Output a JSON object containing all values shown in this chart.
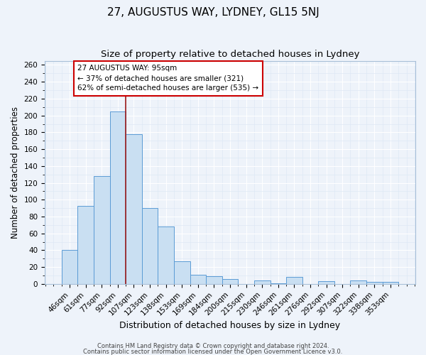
{
  "title": "27, AUGUSTUS WAY, LYDNEY, GL15 5NJ",
  "subtitle": "Size of property relative to detached houses in Lydney",
  "xlabel": "Distribution of detached houses by size in Lydney",
  "ylabel": "Number of detached properties",
  "bar_labels": [
    "46sqm",
    "61sqm",
    "77sqm",
    "92sqm",
    "107sqm",
    "123sqm",
    "138sqm",
    "153sqm",
    "169sqm",
    "184sqm",
    "200sqm",
    "215sqm",
    "230sqm",
    "246sqm",
    "261sqm",
    "276sqm",
    "292sqm",
    "307sqm",
    "322sqm",
    "338sqm",
    "353sqm"
  ],
  "bar_values": [
    40,
    93,
    128,
    205,
    178,
    90,
    68,
    27,
    11,
    9,
    6,
    0,
    4,
    1,
    8,
    0,
    3,
    0,
    4,
    2,
    2
  ],
  "bar_color": "#c9dff2",
  "bar_edge_color": "#5b9bd5",
  "background_color": "#eef3fa",
  "grid_color": "#ffffff",
  "marker_x_label": "92sqm",
  "marker_line_color": "#9b1a1a",
  "annotation_text": "27 AUGUSTUS WAY: 95sqm\n← 37% of detached houses are smaller (321)\n62% of semi-detached houses are larger (535) →",
  "annotation_box_edge_color": "#cc0000",
  "annotation_box_face_color": "#ffffff",
  "ylim": [
    0,
    265
  ],
  "yticks": [
    0,
    20,
    40,
    60,
    80,
    100,
    120,
    140,
    160,
    180,
    200,
    220,
    240,
    260
  ],
  "footer1": "Contains HM Land Registry data © Crown copyright and database right 2024.",
  "footer2": "Contains public sector information licensed under the Open Government Licence v3.0.",
  "title_fontsize": 11,
  "subtitle_fontsize": 9.5,
  "xlabel_fontsize": 9,
  "ylabel_fontsize": 8.5,
  "tick_fontsize": 7.5,
  "annotation_fontsize": 7.5,
  "footer_fontsize": 6
}
